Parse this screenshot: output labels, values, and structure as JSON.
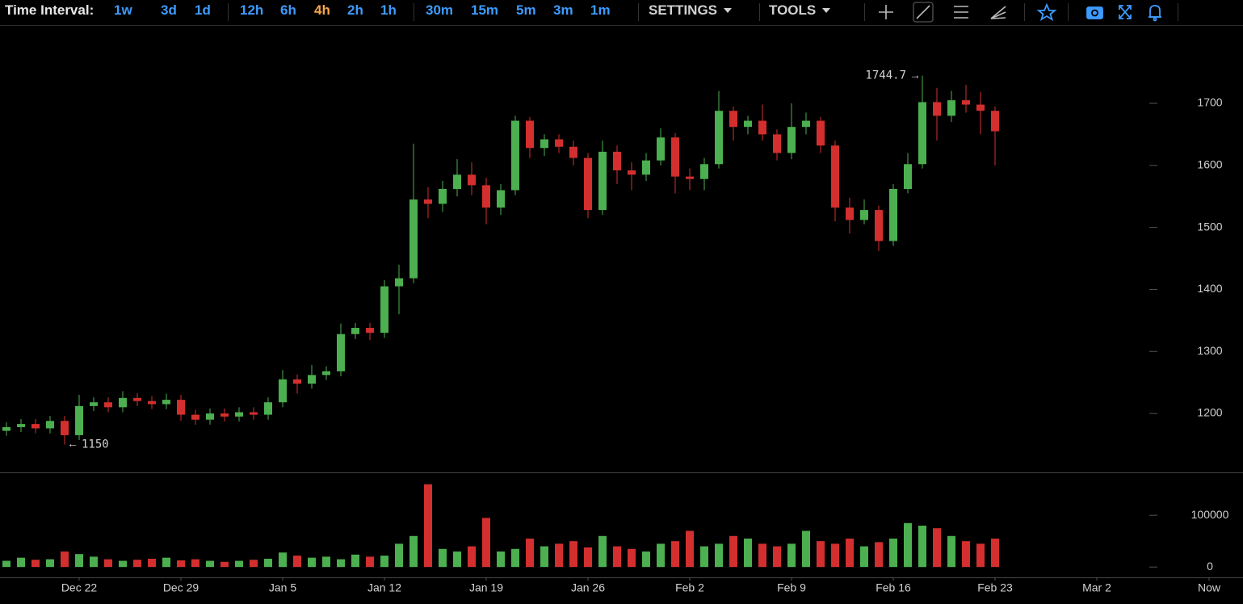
{
  "toolbar": {
    "label": "Time Interval:",
    "intervals": [
      "1w",
      "3d",
      "1d",
      "12h",
      "6h",
      "4h",
      "2h",
      "1h",
      "30m",
      "15m",
      "5m",
      "3m",
      "1m"
    ],
    "active": "4h",
    "menus": [
      "SETTINGS",
      "TOOLS"
    ]
  },
  "chart_data": [
    {
      "type": "candlestick",
      "x": [
        "Dec 17",
        "Dec 18",
        "Dec 19",
        "Dec 20",
        "Dec 21",
        "Dec 22",
        "Dec 23",
        "Dec 24",
        "Dec 25",
        "Dec 26",
        "Dec 27",
        "Dec 28",
        "Dec 29",
        "Dec 30",
        "Dec 31",
        "Jan 1",
        "Jan 2",
        "Jan 3",
        "Jan 4",
        "Jan 5",
        "Jan 6",
        "Jan 7",
        "Jan 8",
        "Jan 9",
        "Jan 10",
        "Jan 11",
        "Jan 12",
        "Jan 13",
        "Jan 14",
        "Jan 15",
        "Jan 16",
        "Jan 17",
        "Jan 18",
        "Jan 19",
        "Jan 20",
        "Jan 21",
        "Jan 22",
        "Jan 23",
        "Jan 24",
        "Jan 25",
        "Jan 26",
        "Jan 27",
        "Jan 28",
        "Jan 29",
        "Jan 30",
        "Jan 31",
        "Feb 1",
        "Feb 2",
        "Feb 3",
        "Feb 4",
        "Feb 5",
        "Feb 6",
        "Feb 7",
        "Feb 8",
        "Feb 9",
        "Feb 10",
        "Feb 11",
        "Feb 12",
        "Feb 13",
        "Feb 14",
        "Feb 15",
        "Feb 16",
        "Feb 17",
        "Feb 18",
        "Feb 19",
        "Feb 20",
        "Feb 21",
        "Feb 22",
        "Feb 23"
      ],
      "open": [
        1172,
        1178,
        1183,
        1176,
        1188,
        1165,
        1212,
        1218,
        1210,
        1225,
        1220,
        1215,
        1222,
        1198,
        1190,
        1200,
        1195,
        1202,
        1198,
        1218,
        1255,
        1248,
        1262,
        1268,
        1328,
        1338,
        1330,
        1405,
        1418,
        1545,
        1538,
        1562,
        1585,
        1568,
        1532,
        1560,
        1672,
        1628,
        1642,
        1630,
        1612,
        1528,
        1622,
        1592,
        1585,
        1608,
        1645,
        1582,
        1578,
        1602,
        1688,
        1662,
        1672,
        1650,
        1620,
        1662,
        1672,
        1632,
        1532,
        1512,
        1528,
        1478,
        1562,
        1602,
        1702,
        1680,
        1705,
        1698,
        1688
      ],
      "high": [
        1186,
        1191,
        1191,
        1196,
        1196,
        1230,
        1226,
        1226,
        1236,
        1233,
        1228,
        1232,
        1230,
        1206,
        1208,
        1208,
        1210,
        1210,
        1226,
        1270,
        1263,
        1278,
        1276,
        1345,
        1346,
        1346,
        1415,
        1440,
        1635,
        1565,
        1575,
        1610,
        1605,
        1580,
        1570,
        1680,
        1678,
        1650,
        1650,
        1640,
        1620,
        1640,
        1632,
        1605,
        1620,
        1660,
        1652,
        1595,
        1612,
        1720,
        1695,
        1680,
        1698,
        1658,
        1700,
        1685,
        1678,
        1640,
        1548,
        1545,
        1535,
        1570,
        1620,
        1744.7,
        1725,
        1720,
        1730,
        1718,
        1695
      ],
      "low": [
        1164,
        1170,
        1168,
        1168,
        1150,
        1157,
        1204,
        1202,
        1202,
        1212,
        1207,
        1207,
        1188,
        1182,
        1182,
        1187,
        1187,
        1190,
        1190,
        1210,
        1232,
        1240,
        1254,
        1260,
        1320,
        1318,
        1322,
        1360,
        1410,
        1515,
        1525,
        1550,
        1552,
        1505,
        1520,
        1552,
        1612,
        1615,
        1620,
        1600,
        1515,
        1520,
        1570,
        1560,
        1575,
        1600,
        1555,
        1560,
        1560,
        1595,
        1640,
        1650,
        1640,
        1608,
        1610,
        1650,
        1620,
        1510,
        1490,
        1505,
        1462,
        1470,
        1555,
        1595,
        1640,
        1670,
        1685,
        1650,
        1600
      ],
      "close": [
        1178,
        1183,
        1176,
        1188,
        1165,
        1212,
        1218,
        1210,
        1225,
        1220,
        1215,
        1222,
        1198,
        1190,
        1200,
        1195,
        1202,
        1198,
        1218,
        1255,
        1248,
        1262,
        1268,
        1328,
        1338,
        1330,
        1405,
        1418,
        1545,
        1538,
        1562,
        1585,
        1568,
        1532,
        1560,
        1672,
        1628,
        1642,
        1630,
        1612,
        1528,
        1622,
        1592,
        1585,
        1608,
        1645,
        1582,
        1578,
        1602,
        1688,
        1662,
        1672,
        1650,
        1620,
        1662,
        1672,
        1632,
        1532,
        1512,
        1528,
        1478,
        1562,
        1602,
        1702,
        1680,
        1705,
        1698,
        1688,
        1655
      ],
      "up_color": "#4caf50",
      "down_color": "#d32f2f",
      "ylim": [
        1105,
        1825
      ],
      "yticks": [
        1200,
        1300,
        1400,
        1500,
        1600,
        1700
      ],
      "high_label": 1744.7,
      "low_label": 1150
    },
    {
      "type": "bar",
      "x": [
        "Dec 17",
        "Dec 18",
        "Dec 19",
        "Dec 20",
        "Dec 21",
        "Dec 22",
        "Dec 23",
        "Dec 24",
        "Dec 25",
        "Dec 26",
        "Dec 27",
        "Dec 28",
        "Dec 29",
        "Dec 30",
        "Dec 31",
        "Jan 1",
        "Jan 2",
        "Jan 3",
        "Jan 4",
        "Jan 5",
        "Jan 6",
        "Jan 7",
        "Jan 8",
        "Jan 9",
        "Jan 10",
        "Jan 11",
        "Jan 12",
        "Jan 13",
        "Jan 14",
        "Jan 15",
        "Jan 16",
        "Jan 17",
        "Jan 18",
        "Jan 19",
        "Jan 20",
        "Jan 21",
        "Jan 22",
        "Jan 23",
        "Jan 24",
        "Jan 25",
        "Jan 26",
        "Jan 27",
        "Jan 28",
        "Jan 29",
        "Jan 30",
        "Jan 31",
        "Feb 1",
        "Feb 2",
        "Feb 3",
        "Feb 4",
        "Feb 5",
        "Feb 6",
        "Feb 7",
        "Feb 8",
        "Feb 9",
        "Feb 10",
        "Feb 11",
        "Feb 12",
        "Feb 13",
        "Feb 14",
        "Feb 15",
        "Feb 16",
        "Feb 17",
        "Feb 18",
        "Feb 19",
        "Feb 20",
        "Feb 21",
        "Feb 22",
        "Feb 23"
      ],
      "values": [
        12000,
        18000,
        14000,
        15000,
        30000,
        25000,
        20000,
        15000,
        12000,
        14000,
        16000,
        18000,
        13000,
        15000,
        12000,
        10000,
        12000,
        14000,
        16000,
        28000,
        22000,
        18000,
        20000,
        15000,
        24000,
        20000,
        22000,
        45000,
        60000,
        160000,
        35000,
        30000,
        40000,
        95000,
        30000,
        35000,
        55000,
        40000,
        45000,
        50000,
        38000,
        60000,
        40000,
        35000,
        30000,
        45000,
        50000,
        70000,
        40000,
        45000,
        60000,
        55000,
        45000,
        40000,
        45000,
        70000,
        50000,
        45000,
        55000,
        40000,
        48000,
        55000,
        85000,
        80000,
        75000,
        60000,
        50000,
        45000,
        55000
      ],
      "ylim": [
        -20000,
        183000
      ],
      "yticks": [
        0,
        100000
      ],
      "xticks": [
        "Dec 22",
        "Dec 29",
        "Jan 5",
        "Jan 12",
        "Jan 19",
        "Jan 26",
        "Feb 2",
        "Feb 9",
        "Feb 16",
        "Feb 23",
        "Mar 2",
        "Now"
      ]
    }
  ]
}
